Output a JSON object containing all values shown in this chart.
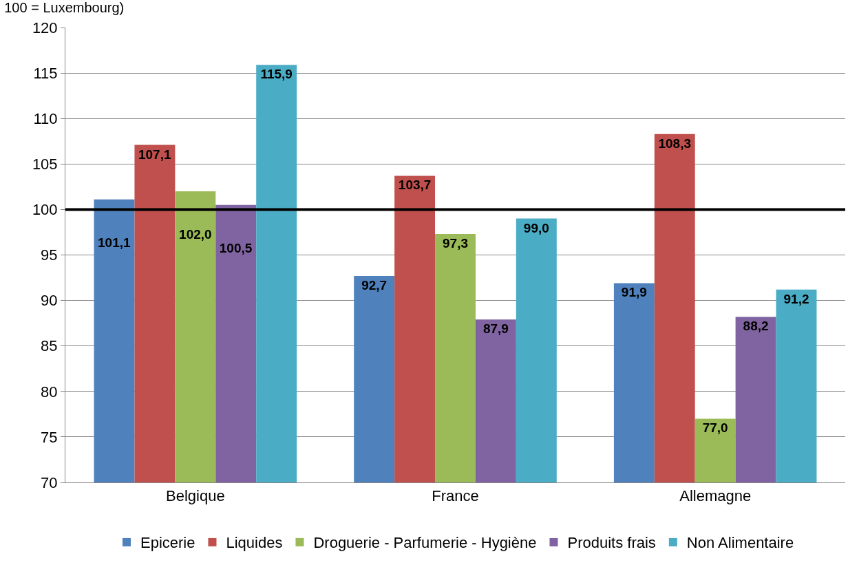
{
  "chart_data": {
    "type": "bar",
    "title": "100 = Luxembourg)",
    "categories": [
      "Belgique",
      "France",
      "Allemagne"
    ],
    "series": [
      {
        "name": "Epicerie",
        "color": "#4f81bd",
        "values": [
          101.1,
          92.7,
          91.9
        ],
        "value_labels": [
          "101,1",
          "92,7",
          "91,9"
        ]
      },
      {
        "name": "Liquides",
        "color": "#c0504d",
        "values": [
          107.1,
          103.7,
          108.3
        ],
        "value_labels": [
          "107,1",
          "103,7",
          "108,3"
        ]
      },
      {
        "name": "Droguerie - Parfumerie - Hygiène",
        "color": "#9bbb59",
        "values": [
          102.0,
          97.3,
          77.0
        ],
        "value_labels": [
          "102,0",
          "97,3",
          "77,0"
        ]
      },
      {
        "name": "Produits frais",
        "color": "#8064a2",
        "values": [
          100.5,
          87.9,
          88.2
        ],
        "value_labels": [
          "100,5",
          "87,9",
          "88,2"
        ]
      },
      {
        "name": "Non Alimentaire",
        "color": "#4bacc6",
        "values": [
          115.9,
          99.0,
          91.2
        ],
        "value_labels": [
          "115,9",
          "99,0",
          "91,2"
        ]
      }
    ],
    "ylim": [
      70,
      120
    ],
    "yticks": [
      70,
      75,
      80,
      85,
      90,
      95,
      100,
      105,
      110,
      115,
      120
    ],
    "grid": "y",
    "legend": "bottom",
    "ref_lines": [
      {
        "axis": "y",
        "value": 100,
        "color": "#000000"
      }
    ]
  }
}
